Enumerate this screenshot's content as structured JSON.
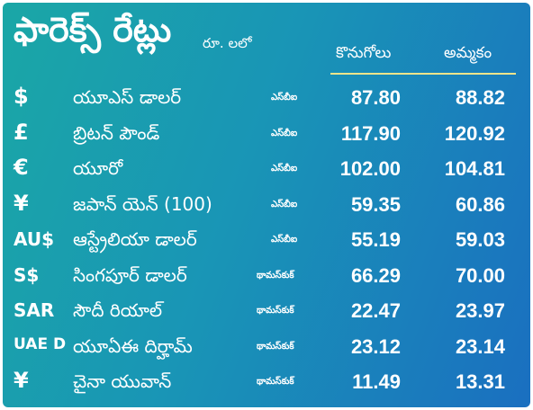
{
  "header": {
    "title": "ఫారెక్స్ రేట్లు",
    "unit": "రూ. లలో",
    "buy_label": "కొనుగోలు",
    "sell_label": "అమ్మకం"
  },
  "rows": [
    {
      "symbol": "$",
      "name": "యూఎస్ డాలర్",
      "source": "ఎస్‌బీఐ",
      "buy": "87.80",
      "sell": "88.82"
    },
    {
      "symbol": "£",
      "name": "బ్రిటన్ పౌండ్",
      "source": "ఎస్‌బీఐ",
      "buy": "117.90",
      "sell": "120.92"
    },
    {
      "symbol": "€",
      "name": "యూరో",
      "source": "ఎస్‌బీఐ",
      "buy": "102.00",
      "sell": "104.81"
    },
    {
      "symbol": "¥",
      "name": "జపాన్ యెన్ (100)",
      "source": "ఎస్‌బీఐ",
      "buy": "59.35",
      "sell": "60.86"
    },
    {
      "symbol": "AU$",
      "name": "ఆస్ట్రేలియా డాలర్",
      "source": "ఎస్‌బీఐ",
      "buy": "55.19",
      "sell": "59.03"
    },
    {
      "symbol": "S$",
      "name": "సింగపూర్ డాలర్",
      "source": "థామస్‌కుక్",
      "buy": "66.29",
      "sell": "70.00"
    },
    {
      "symbol": "SAR",
      "name": "సౌదీ రియాల్",
      "source": "థామస్‌కుక్",
      "buy": "22.47",
      "sell": "23.97"
    },
    {
      "symbol": "UAE D",
      "name": "యూఏఈ దిర్హామ్",
      "source": "థామస్‌కుక్",
      "buy": "23.12",
      "sell": "23.14"
    },
    {
      "symbol": "¥",
      "name": "చైనా యువాన్",
      "source": "థామస్‌కుక్",
      "buy": "11.49",
      "sell": "13.31"
    }
  ],
  "colors": {
    "background_start": "#1aa7a6",
    "background_end": "#1a6fc0",
    "divider": "#f1e48a",
    "text": "#ffffff"
  }
}
